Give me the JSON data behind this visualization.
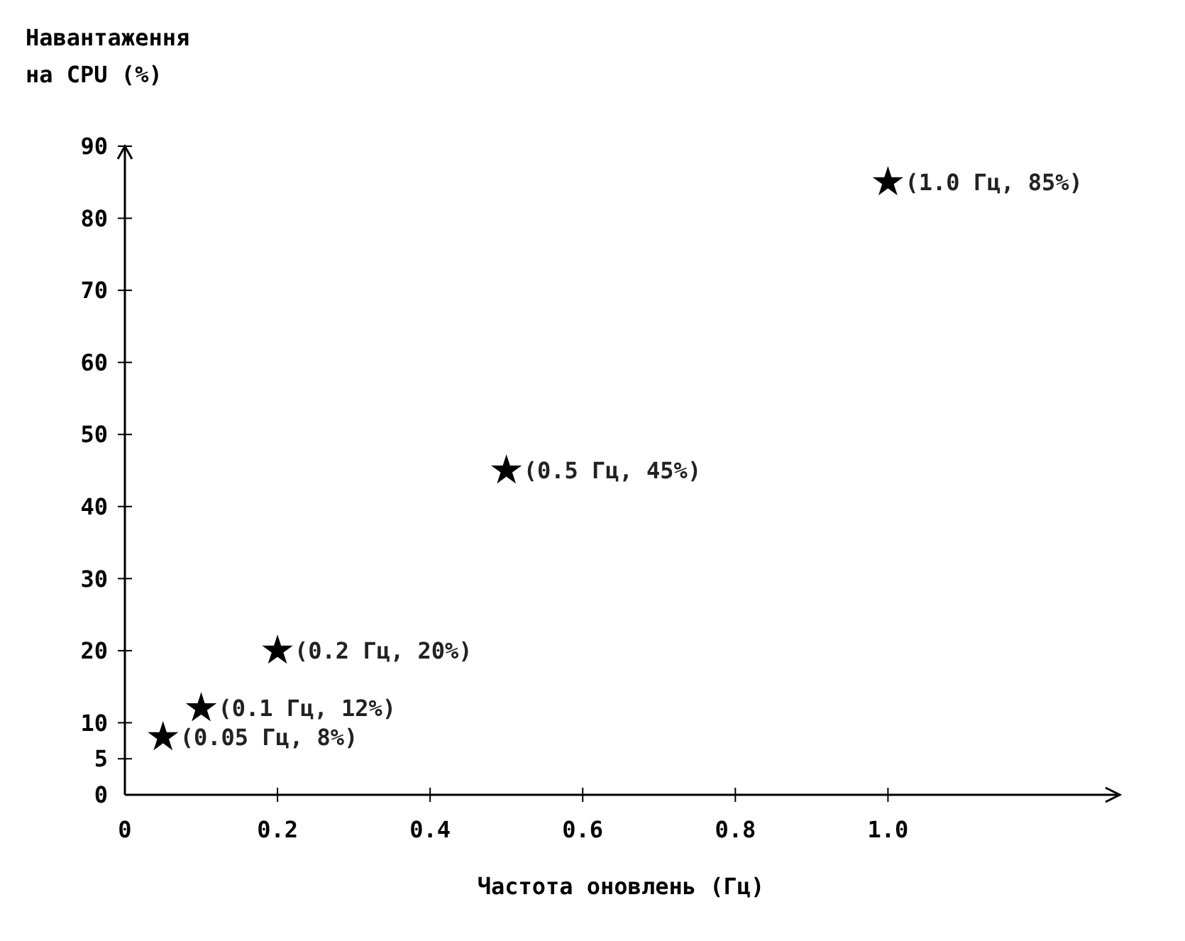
{
  "chart_data": {
    "type": "scatter",
    "xlabel": "Частота оновлень (Гц)",
    "ylabel": "Навантаження на CPU (%)",
    "x": [
      0.05,
      0.1,
      0.2,
      0.5,
      1.0
    ],
    "values": [
      8,
      12,
      20,
      45,
      85
    ],
    "value_labels": [
      "(0.05 Гц, 8%)",
      "(0.1 Гц, 12%)",
      "(0.2 Гц, 20%)",
      "(0.5 Гц, 45%)",
      "(1.0 Гц, 85%)"
    ],
    "color": "#000000",
    "marker": "star",
    "xlim": [
      0,
      1.3
    ],
    "xticks": [
      0,
      0.2,
      0.4,
      0.6,
      0.8,
      {
        "value": 1,
        "label": "1.0"
      }
    ],
    "ylim": [
      0,
      90
    ],
    "yticks": [
      0,
      5,
      10,
      20,
      30,
      40,
      50,
      60,
      70,
      80,
      90
    ],
    "grid": false
  }
}
